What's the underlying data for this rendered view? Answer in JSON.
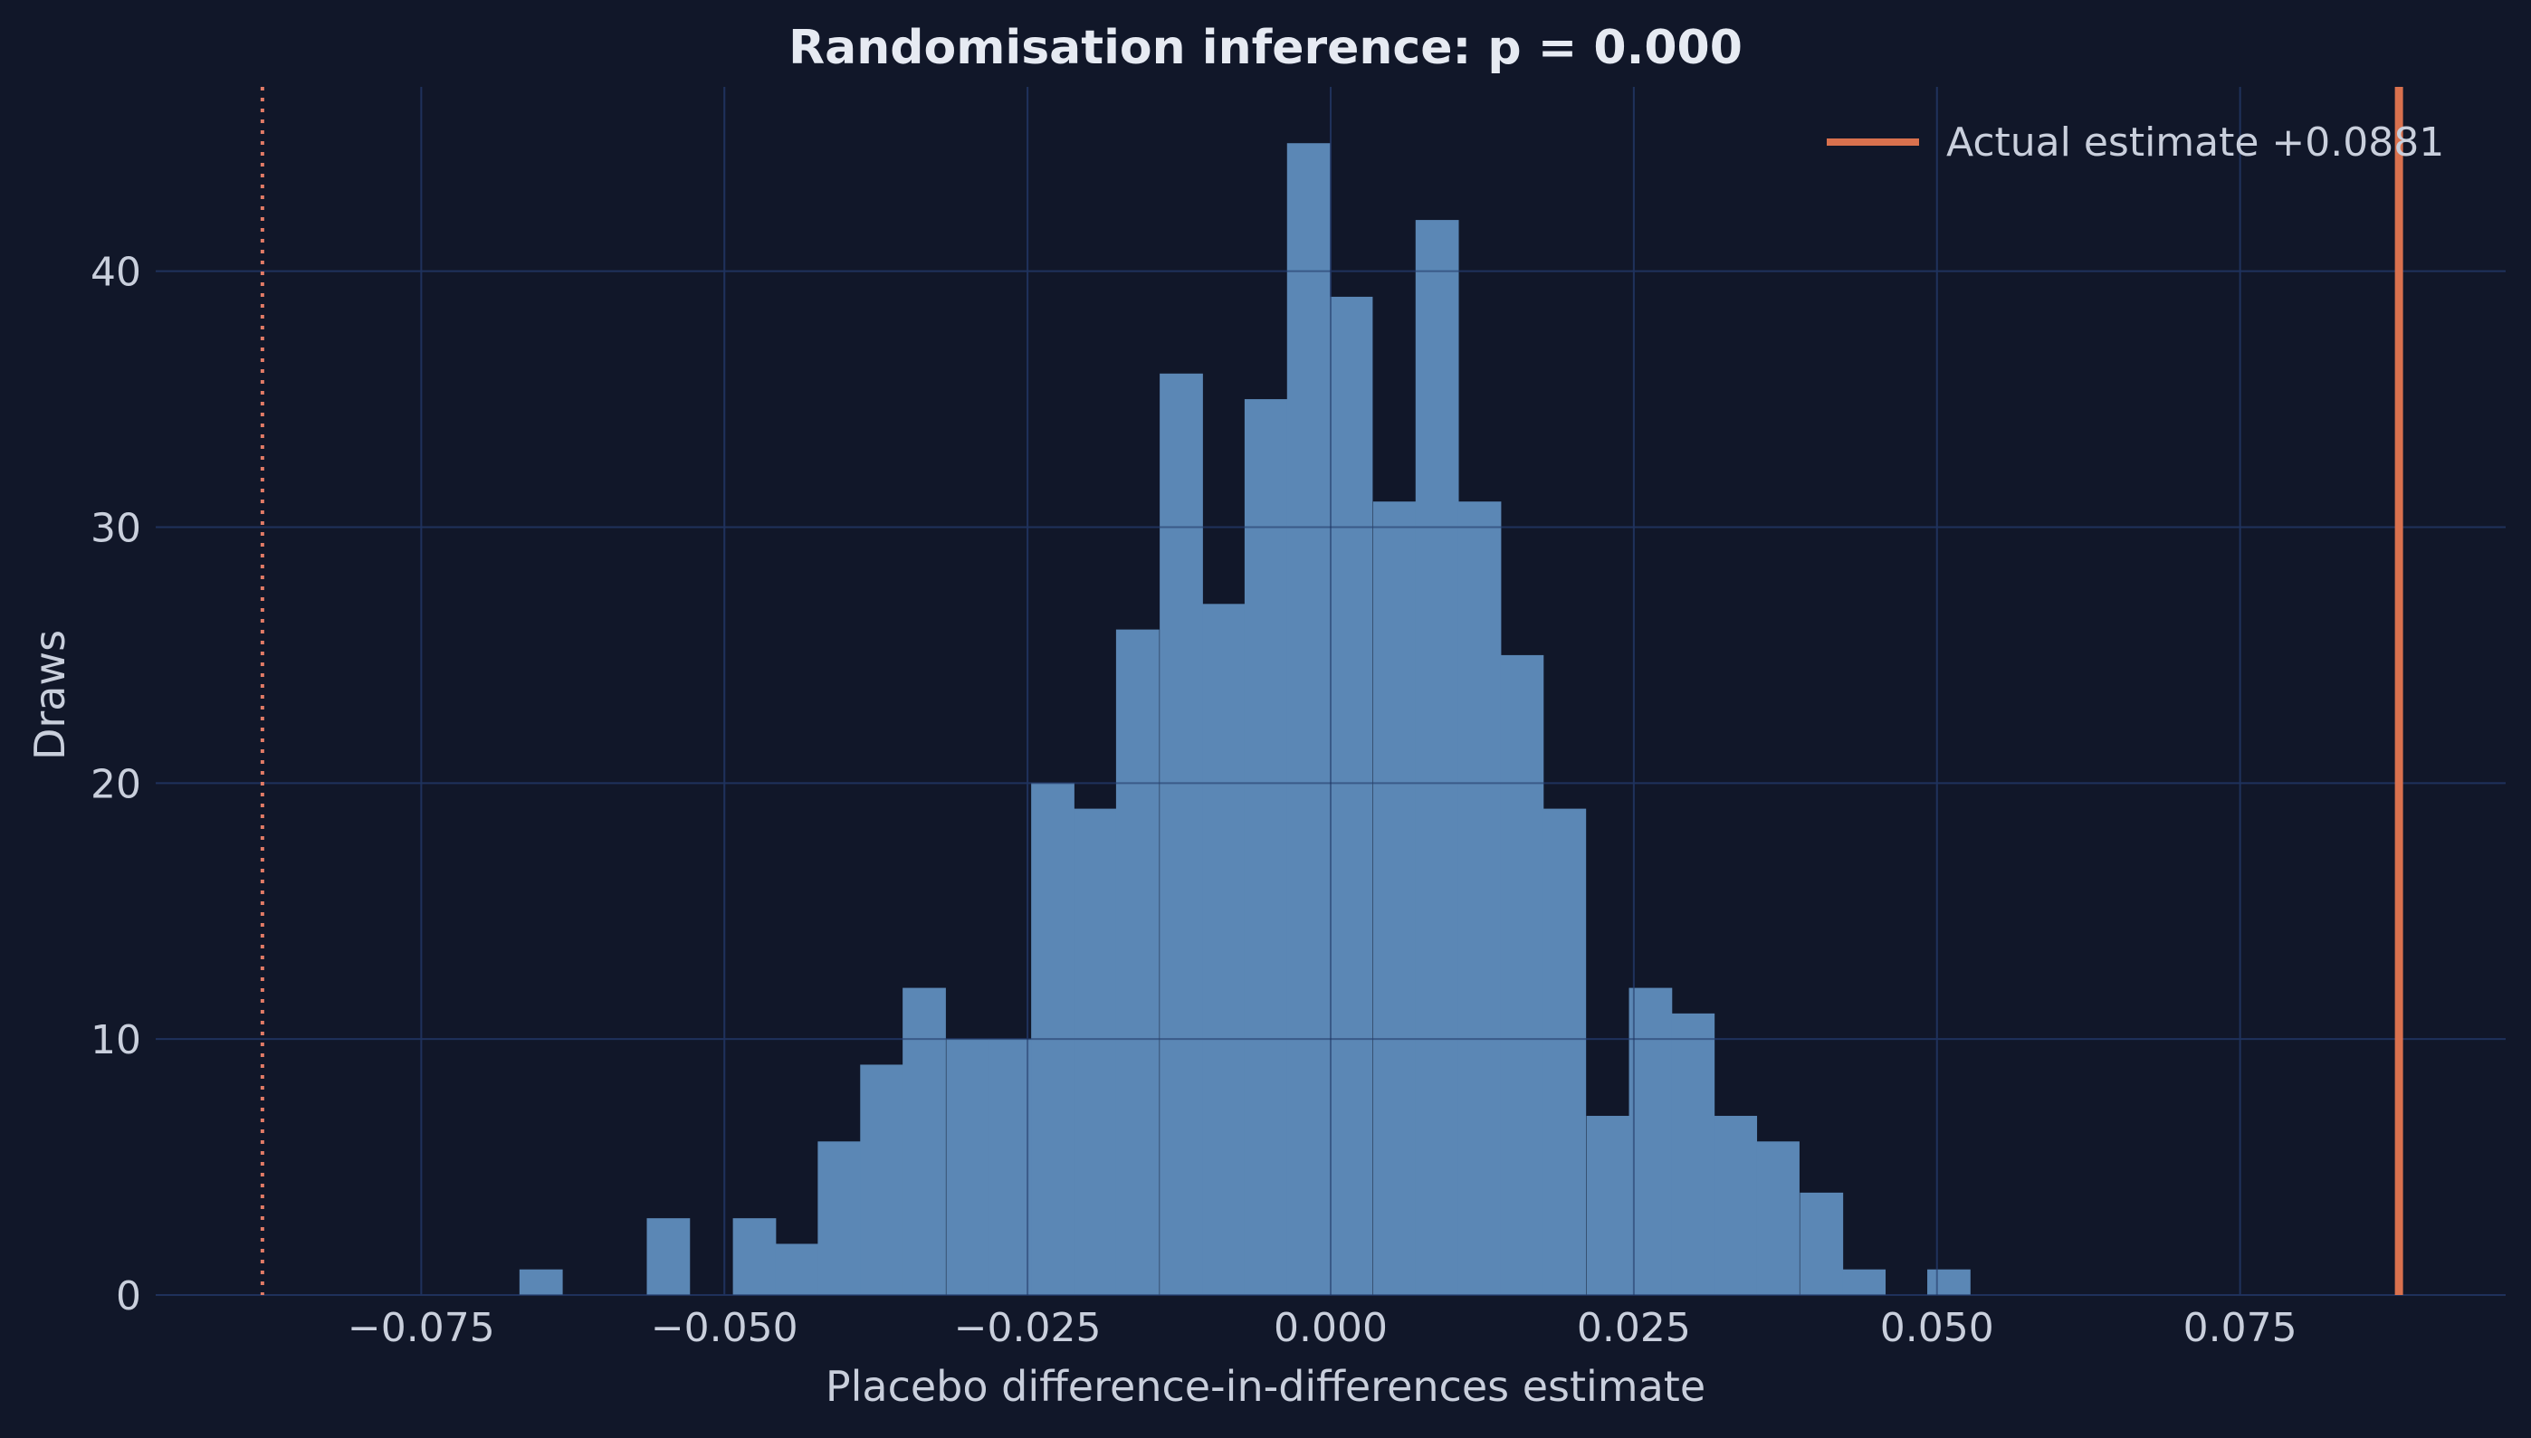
{
  "chart_data": {
    "type": "bar",
    "title": "Randomisation inference: p = 0.000",
    "xlabel": "Placebo difference-in-differences estimate",
    "ylabel": "Draws",
    "xlim": [
      -0.0969,
      0.0969
    ],
    "ylim": [
      0,
      47.2
    ],
    "xticks": [
      -0.075,
      -0.05,
      -0.025,
      0.0,
      0.025,
      0.05,
      0.075
    ],
    "xtick_labels": [
      "−0.075",
      "−0.050",
      "−0.025",
      "0.000",
      "0.025",
      "0.050",
      "0.075"
    ],
    "yticks": [
      0,
      10,
      20,
      30,
      40
    ],
    "ytick_labels": [
      "0",
      "10",
      "20",
      "30",
      "40"
    ],
    "grid": true,
    "bin_width": 0.00352,
    "bins": [
      {
        "x0": -0.0669,
        "value": 1
      },
      {
        "x0": -0.0634,
        "value": 0
      },
      {
        "x0": -0.0599,
        "value": 0
      },
      {
        "x0": -0.0564,
        "value": 3
      },
      {
        "x0": -0.0529,
        "value": 0
      },
      {
        "x0": -0.0493,
        "value": 3
      },
      {
        "x0": -0.0458,
        "value": 2
      },
      {
        "x0": -0.0423,
        "value": 6
      },
      {
        "x0": -0.0388,
        "value": 9
      },
      {
        "x0": -0.0353,
        "value": 12
      },
      {
        "x0": -0.0317,
        "value": 10
      },
      {
        "x0": -0.0282,
        "value": 10
      },
      {
        "x0": -0.0247,
        "value": 20
      },
      {
        "x0": -0.0212,
        "value": 19
      },
      {
        "x0": -0.0177,
        "value": 26
      },
      {
        "x0": -0.0141,
        "value": 36
      },
      {
        "x0": -0.0106,
        "value": 27
      },
      {
        "x0": -0.0071,
        "value": 35
      },
      {
        "x0": -0.0036,
        "value": 45
      },
      {
        "x0": -0.0001,
        "value": 39
      },
      {
        "x0": 0.0035,
        "value": 31
      },
      {
        "x0": 0.007,
        "value": 42
      },
      {
        "x0": 0.0105,
        "value": 31
      },
      {
        "x0": 0.014,
        "value": 25
      },
      {
        "x0": 0.0175,
        "value": 19
      },
      {
        "x0": 0.0211,
        "value": 7
      },
      {
        "x0": 0.0246,
        "value": 12
      },
      {
        "x0": 0.0281,
        "value": 11
      },
      {
        "x0": 0.0316,
        "value": 7
      },
      {
        "x0": 0.0351,
        "value": 6
      },
      {
        "x0": 0.0387,
        "value": 4
      },
      {
        "x0": 0.0422,
        "value": 1
      },
      {
        "x0": 0.0457,
        "value": 0
      },
      {
        "x0": 0.0492,
        "value": 1
      }
    ],
    "reference_lines": [
      {
        "x": 0.0881,
        "style": "solid",
        "color": "#d9714e",
        "legend": "Actual estimate +0.0881"
      },
      {
        "x": -0.0881,
        "style": "dotted",
        "color": "#e07a66"
      }
    ],
    "legend_position": "top-right",
    "colors": {
      "background": "#111729",
      "bars": "#5b87b5",
      "grid": "#1f2d52",
      "text": "#c9cfdc",
      "title": "#e6eaf2"
    }
  }
}
